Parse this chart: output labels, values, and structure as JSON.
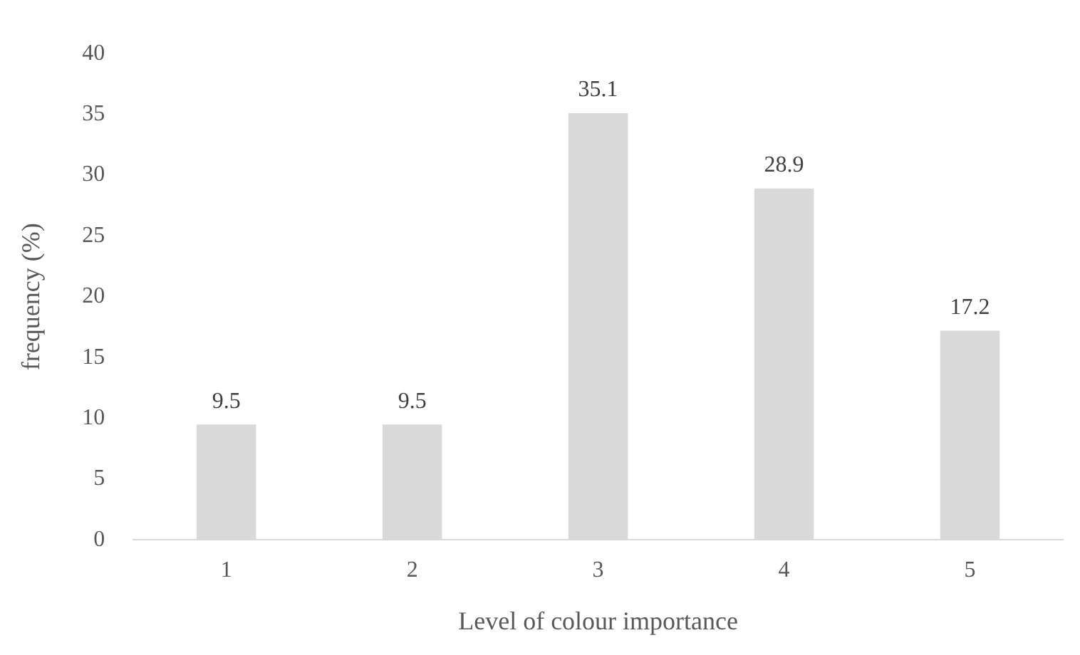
{
  "chart_data": {
    "type": "bar",
    "xlabel": "Level of colour importance",
    "ylabel": "frequency (%)",
    "categories": [
      "1",
      "2",
      "3",
      "4",
      "5"
    ],
    "values": [
      9.5,
      9.5,
      35.1,
      28.9,
      17.2
    ],
    "color": "#d9d9d9",
    "ylim": [
      0,
      40
    ],
    "yticks": [
      0,
      5,
      10,
      15,
      20,
      25,
      30,
      35,
      40
    ],
    "grid": false,
    "legend": false,
    "data_labels": true
  }
}
